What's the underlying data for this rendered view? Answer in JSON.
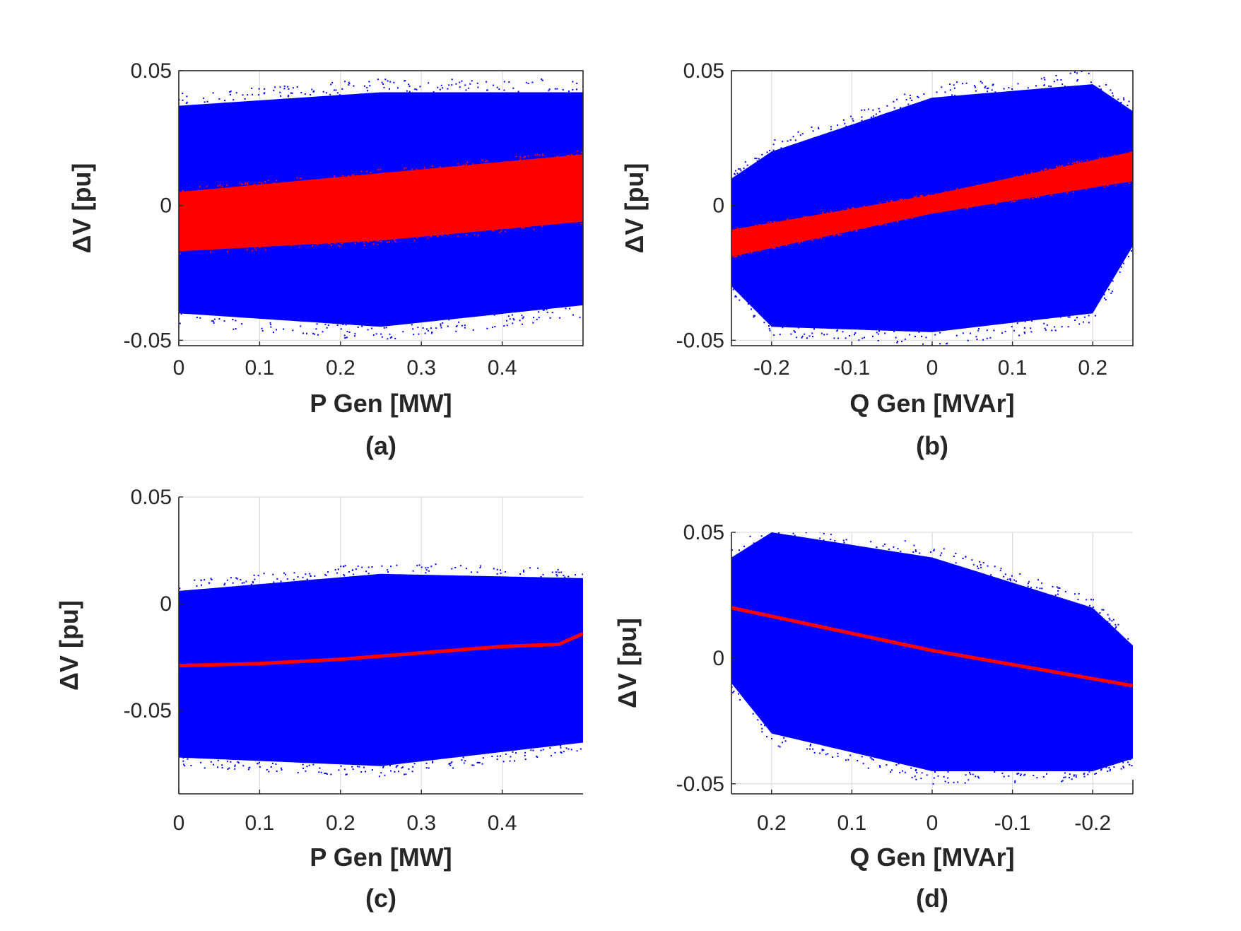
{
  "chart_data": [
    {
      "id": "a",
      "type": "scatter",
      "caption": "(a)",
      "xlabel": "P Gen [MW]",
      "ylabel": "ΔV [pu]",
      "xlim": [
        0,
        0.5
      ],
      "ylim": [
        -0.052,
        0.05
      ],
      "xticks": [
        0,
        0.1,
        0.2,
        0.3,
        0.4
      ],
      "xticklabels": [
        "0",
        "0.1",
        "0.2",
        "0.3",
        "0.4"
      ],
      "yticks": [
        -0.05,
        0,
        0.05
      ],
      "yticklabels": [
        "-0.05",
        "0",
        "0.05"
      ],
      "grid": true,
      "box": true,
      "series": [
        {
          "color": "#0000ff",
          "shape": "cloud",
          "band": [
            [
              0,
              -0.04,
              0.037
            ],
            [
              0.25,
              -0.045,
              0.042
            ],
            [
              0.5,
              -0.037,
              0.042
            ]
          ]
        },
        {
          "color": "#ff0000",
          "shape": "band",
          "band": [
            [
              0,
              -0.017,
              0.005
            ],
            [
              0.25,
              -0.013,
              0.012
            ],
            [
              0.5,
              -0.006,
              0.019
            ]
          ]
        }
      ]
    },
    {
      "id": "b",
      "type": "scatter",
      "caption": "(b)",
      "xlabel": "Q Gen [MVAr]",
      "ylabel": "ΔV [pu]",
      "xlim": [
        -0.25,
        0.25
      ],
      "ylim": [
        -0.052,
        0.05
      ],
      "xticks": [
        -0.2,
        -0.1,
        0,
        0.1,
        0.2
      ],
      "xticklabels": [
        "-0.2",
        "-0.1",
        "0",
        "0.1",
        "0.2"
      ],
      "yticks": [
        -0.05,
        0,
        0.05
      ],
      "yticklabels": [
        "-0.05",
        "0",
        "0.05"
      ],
      "grid": true,
      "box": true,
      "series": [
        {
          "color": "#0000ff",
          "shape": "cloud",
          "band": [
            [
              -0.25,
              -0.03,
              0.01
            ],
            [
              -0.2,
              -0.045,
              0.02
            ],
            [
              0,
              -0.047,
              0.04
            ],
            [
              0.2,
              -0.04,
              0.045
            ],
            [
              0.25,
              -0.015,
              0.035
            ]
          ]
        },
        {
          "color": "#ff0000",
          "shape": "band",
          "band": [
            [
              -0.25,
              -0.019,
              -0.009
            ],
            [
              0,
              -0.003,
              0.004
            ],
            [
              0.25,
              0.009,
              0.02
            ]
          ]
        }
      ]
    },
    {
      "id": "c",
      "type": "scatter",
      "caption": "(c)",
      "xlabel": "P Gen [MW]",
      "ylabel": "ΔV [pu]",
      "xlim": [
        0,
        0.5
      ],
      "ylim": [
        -0.089,
        0.05
      ],
      "xticks": [
        0,
        0.1,
        0.2,
        0.3,
        0.4
      ],
      "xticklabels": [
        "0",
        "0.1",
        "0.2",
        "0.3",
        "0.4"
      ],
      "yticks": [
        -0.05,
        0,
        0.05
      ],
      "yticklabels": [
        "-0.05",
        "0",
        "0.05"
      ],
      "grid": true,
      "box": false,
      "series": [
        {
          "color": "#0000ff",
          "shape": "cloud",
          "band": [
            [
              0,
              -0.072,
              0.006
            ],
            [
              0.25,
              -0.076,
              0.014
            ],
            [
              0.5,
              -0.065,
              0.012
            ]
          ]
        },
        {
          "color": "#ff0000",
          "shape": "line",
          "points": [
            [
              0,
              -0.029
            ],
            [
              0.1,
              -0.028
            ],
            [
              0.2,
              -0.026
            ],
            [
              0.3,
              -0.023
            ],
            [
              0.4,
              -0.02
            ],
            [
              0.47,
              -0.019
            ],
            [
              0.5,
              -0.014
            ]
          ]
        }
      ]
    },
    {
      "id": "d",
      "type": "scatter",
      "caption": "(d)",
      "xlabel": "Q Gen [MVAr]",
      "ylabel": "ΔV [pu]",
      "xlim": [
        0.25,
        -0.25
      ],
      "ylim": [
        -0.054,
        0.05
      ],
      "xticks": [
        0.2,
        0.1,
        0,
        -0.1,
        -0.2
      ],
      "xticklabels": [
        "0.2",
        "0.1",
        "0",
        "-0.1",
        "-0.2"
      ],
      "yticks": [
        -0.05,
        0,
        0.05
      ],
      "yticklabels": [
        "-0.05",
        "0",
        "0.05"
      ],
      "grid": true,
      "box": false,
      "series": [
        {
          "color": "#0000ff",
          "shape": "cloud",
          "band": [
            [
              0.25,
              -0.01,
              0.04
            ],
            [
              0.2,
              -0.03,
              0.05
            ],
            [
              0,
              -0.045,
              0.04
            ],
            [
              -0.2,
              -0.045,
              0.02
            ],
            [
              -0.25,
              -0.04,
              0.005
            ]
          ]
        },
        {
          "color": "#ff0000",
          "shape": "line",
          "points": [
            [
              0.25,
              0.02
            ],
            [
              0,
              0.003
            ],
            [
              -0.25,
              -0.011
            ]
          ]
        }
      ]
    }
  ]
}
